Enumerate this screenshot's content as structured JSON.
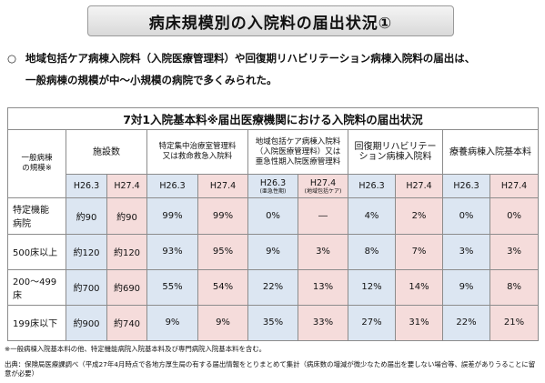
{
  "title": "病床規模別の入院料の届出状況①",
  "bullet": {
    "mark": "○",
    "line1": "地域包括ケア病棟入院料（入院医療管理料）や回復期リハビリテーション病棟入院料の届出は、",
    "line2": "一般病棟の規模が中～小規模の病院で多くみられた。"
  },
  "table": {
    "caption": "7対1入院基本料※届出医療機関における入院料の届出状況",
    "corner_header": "一般病棟\nの規模※",
    "col_headers": [
      "施設数",
      "特定集中治療室管理料\n又は救命救急入院料",
      "地域包括ケア病棟入院料\n（入院医療管理料）又は\n亜急性期入院医療管理料",
      "回復期リハビリテー\nション病棟入院料",
      "療養病棟入院基本料"
    ],
    "years": [
      {
        "label": "H26.3",
        "sub": ""
      },
      {
        "label": "H27.4",
        "sub": ""
      },
      {
        "label": "H26.3",
        "sub": ""
      },
      {
        "label": "H27.4",
        "sub": ""
      },
      {
        "label": "H26.3",
        "sub": "(亜急性期)"
      },
      {
        "label": "H27.4",
        "sub": "(地域包括ケア)"
      },
      {
        "label": "H26.3",
        "sub": ""
      },
      {
        "label": "H27.4",
        "sub": ""
      },
      {
        "label": "H26.3",
        "sub": ""
      },
      {
        "label": "H27.4",
        "sub": ""
      }
    ],
    "rows": [
      {
        "label": "特定機能\n病院",
        "cells": [
          "約90",
          "約90",
          "99%",
          "99%",
          "0%",
          "―",
          "4%",
          "2%",
          "0%",
          "0%"
        ]
      },
      {
        "label": "500床以上",
        "cells": [
          "約120",
          "約120",
          "93%",
          "95%",
          "9%",
          "3%",
          "8%",
          "7%",
          "3%",
          "3%"
        ]
      },
      {
        "label": "200～499床",
        "cells": [
          "約700",
          "約690",
          "55%",
          "54%",
          "22%",
          "13%",
          "12%",
          "14%",
          "9%",
          "8%"
        ]
      },
      {
        "label": "199床以下",
        "cells": [
          "約900",
          "約740",
          "9%",
          "9%",
          "35%",
          "33%",
          "27%",
          "31%",
          "22%",
          "21%"
        ]
      }
    ]
  },
  "note": "※一般病棟入院基本料の他、特定機能病院入院基本料及び専門病院入院基本料を含む。",
  "source": "出典：保険局医療課調べ（平成27年4月時点で各地方厚生局の有する届出情報をとりまとめて集計（病床数の増減が微少なため届出を要しない場合等、誤差がありうることに留意が必要）",
  "colors": {
    "h26_blue": "#dce6f2",
    "h27_pink": "#f5dcdb"
  }
}
